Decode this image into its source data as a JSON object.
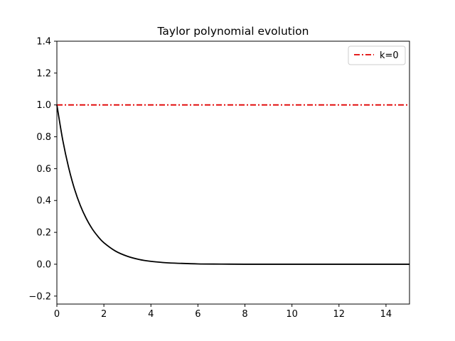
{
  "chart_data": {
    "type": "line",
    "title": "Taylor polynomial evolution",
    "xlabel": "",
    "ylabel": "",
    "xlim": [
      0,
      15
    ],
    "ylim": [
      -0.25,
      1.4
    ],
    "x_ticks": [
      0,
      2,
      4,
      6,
      8,
      10,
      12,
      14
    ],
    "x_tick_labels": [
      "0",
      "2",
      "4",
      "6",
      "8",
      "10",
      "12",
      "14"
    ],
    "y_ticks": [
      -0.2,
      0.0,
      0.2,
      0.4,
      0.6,
      0.8,
      1.0,
      1.2,
      1.4
    ],
    "y_tick_labels": [
      "−0.2",
      "0.0",
      "0.2",
      "0.4",
      "0.6",
      "0.8",
      "1.0",
      "1.2",
      "1.4"
    ],
    "grid": false,
    "legend": {
      "placement": "top-right",
      "entries": [
        "k=0"
      ]
    },
    "series": [
      {
        "name": "",
        "color": "#000000",
        "style": "solid",
        "x": [
          0,
          0.25,
          0.5,
          0.75,
          1,
          1.25,
          1.5,
          1.75,
          2,
          2.5,
          3,
          3.5,
          4,
          4.5,
          5,
          6,
          7,
          8,
          9,
          10,
          11,
          12,
          13,
          14,
          15
        ],
        "y": [
          1.0,
          0.779,
          0.607,
          0.472,
          0.368,
          0.287,
          0.223,
          0.174,
          0.135,
          0.082,
          0.05,
          0.03,
          0.018,
          0.011,
          0.007,
          0.002,
          0.001,
          0.0,
          0.0,
          0.0,
          0.0,
          0.0,
          0.0,
          0.0,
          0.0
        ]
      },
      {
        "name": "k=0",
        "color": "#e00000",
        "style": "dashdot",
        "x": [
          0,
          15
        ],
        "y": [
          1.0,
          1.0
        ]
      }
    ]
  }
}
